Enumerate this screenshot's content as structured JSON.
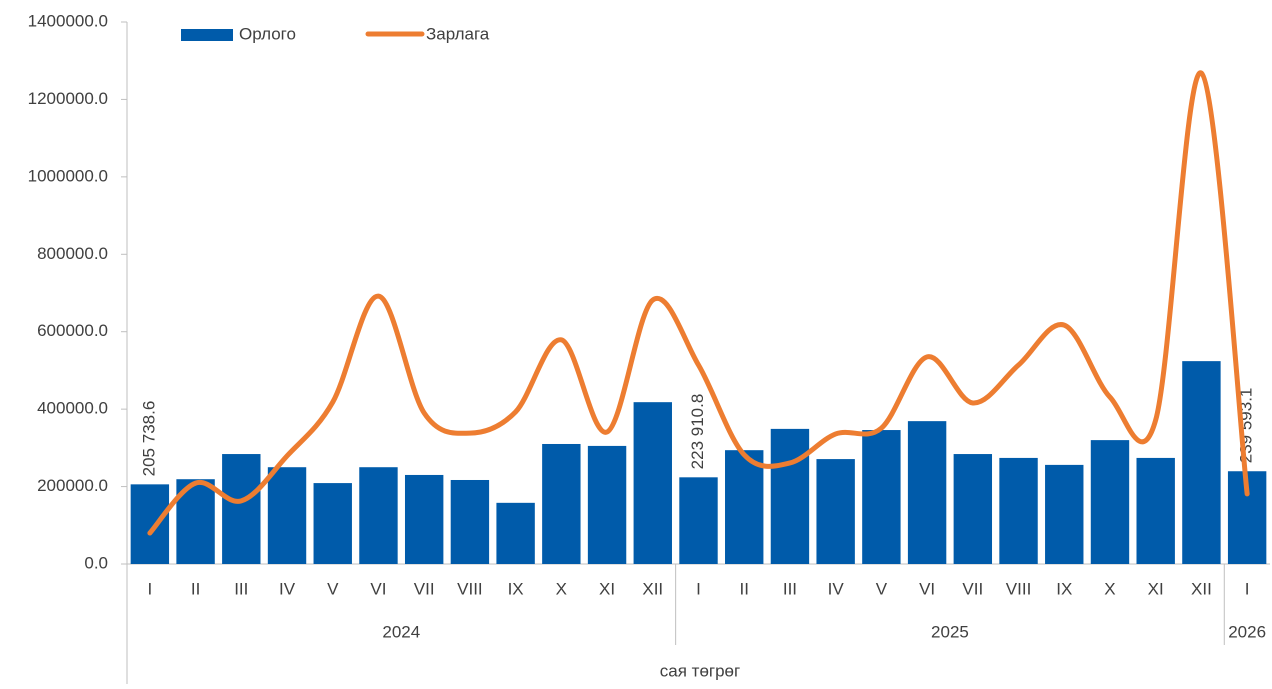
{
  "chart_data": {
    "type": "bar_line",
    "x_label": "сая төгрөг",
    "groups": [
      {
        "label": "2024",
        "categories": [
          "I",
          "II",
          "III",
          "IV",
          "V",
          "VI",
          "VII",
          "VIII",
          "IX",
          "X",
          "XI",
          "XII"
        ]
      },
      {
        "label": "2025",
        "categories": [
          "I",
          "II",
          "III",
          "IV",
          "V",
          "VI",
          "VII",
          "VIII",
          "IX",
          "X",
          "XI",
          "XII"
        ]
      },
      {
        "label": "2026",
        "categories": [
          "I"
        ]
      }
    ],
    "series": [
      {
        "name": "Орлого",
        "type": "bar",
        "color": "#005baa",
        "values": [
          205738.6,
          219000,
          284000,
          250000,
          209000,
          250000,
          230000,
          217000,
          158000,
          310000,
          305000,
          418000,
          223910.8,
          294000,
          349000,
          271000,
          346000,
          369000,
          284000,
          274000,
          256000,
          320000,
          274000,
          524000,
          239593.1
        ],
        "value_labels": [
          "205 738.6",
          null,
          null,
          null,
          null,
          null,
          null,
          null,
          null,
          null,
          null,
          null,
          "223 910.8",
          null,
          null,
          null,
          null,
          null,
          null,
          null,
          null,
          null,
          null,
          null,
          "239 593.1"
        ]
      },
      {
        "name": "Зарлага",
        "type": "line",
        "color": "#ed7d31",
        "values": [
          80000,
          209000,
          163000,
          279000,
          418000,
          692000,
          390000,
          338000,
          393000,
          579000,
          341000,
          682000,
          514000,
          282000,
          261000,
          336000,
          351000,
          535000,
          416000,
          514000,
          617000,
          431000,
          372000,
          1268000,
          181000
        ]
      }
    ],
    "ylim": [
      0,
      1400000
    ],
    "yticks": [
      {
        "value": 0,
        "label": "0.0"
      },
      {
        "value": 200000,
        "label": "200000.0"
      },
      {
        "value": 400000,
        "label": "400000.0"
      },
      {
        "value": 600000,
        "label": "600000.0"
      },
      {
        "value": 800000,
        "label": "800000.0"
      },
      {
        "value": 1000000,
        "label": "1000000.0"
      },
      {
        "value": 1200000,
        "label": "1200000.0"
      },
      {
        "value": 1400000,
        "label": "1400000.0"
      }
    ]
  }
}
